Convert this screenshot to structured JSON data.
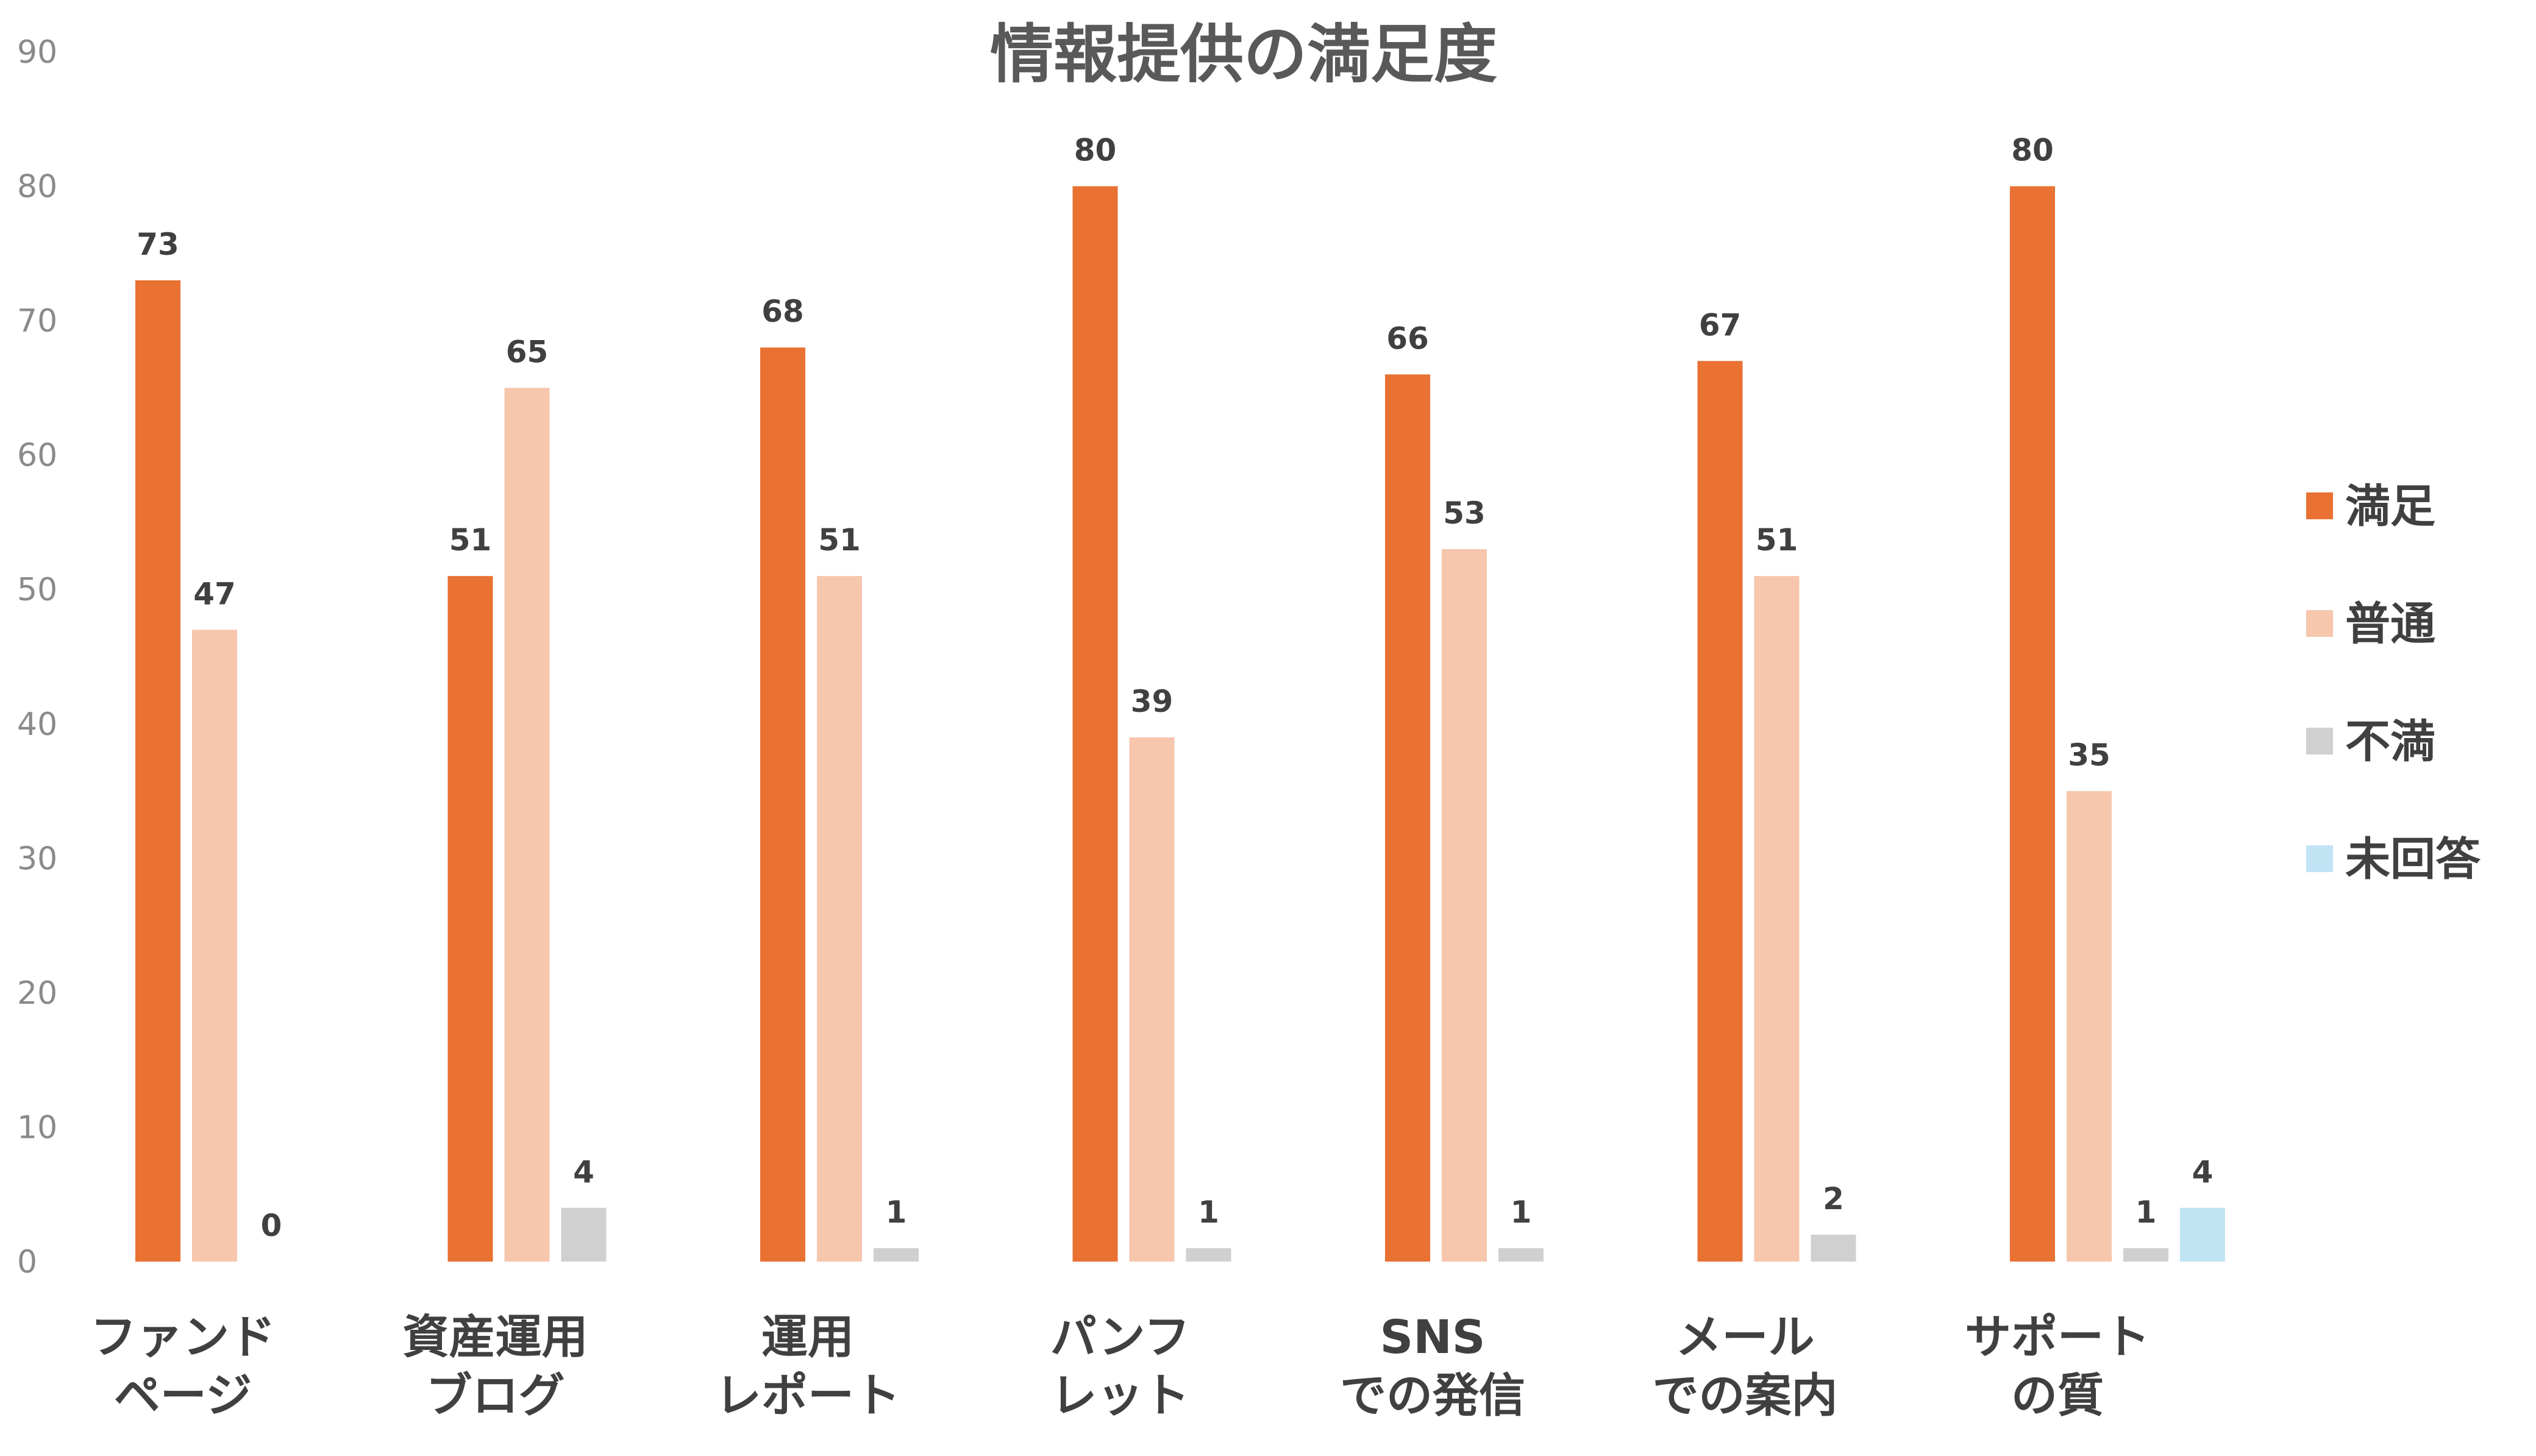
{
  "chart_data": {
    "type": "bar",
    "title": "情報提供の満足度",
    "xlabel": "",
    "ylabel": "",
    "ylim": [
      0,
      90
    ],
    "y_ticks": [
      0,
      10,
      20,
      30,
      40,
      50,
      60,
      70,
      80,
      90
    ],
    "grid": false,
    "legend_position": "right",
    "categories": [
      [
        "ファンド",
        "ページ"
      ],
      [
        "資産運用",
        "ブログ"
      ],
      [
        "運用",
        "レポート"
      ],
      [
        "パンフ",
        "レット"
      ],
      [
        "SNS",
        "での発信"
      ],
      [
        "メール",
        "での案内"
      ],
      [
        "サポート",
        "の質"
      ]
    ],
    "series": [
      {
        "name": "満足",
        "color": "#E97132",
        "values": [
          73,
          51,
          68,
          80,
          66,
          67,
          80
        ]
      },
      {
        "name": "普通",
        "color": "#F6C6AD",
        "values": [
          47,
          65,
          51,
          39,
          53,
          51,
          35
        ]
      },
      {
        "name": "不満",
        "color": "#D0D0D0",
        "values": [
          0,
          4,
          1,
          1,
          1,
          2,
          1
        ]
      },
      {
        "name": "未回答",
        "color": "#C1E4F5",
        "values": [
          null,
          null,
          null,
          null,
          null,
          null,
          4
        ]
      }
    ]
  }
}
